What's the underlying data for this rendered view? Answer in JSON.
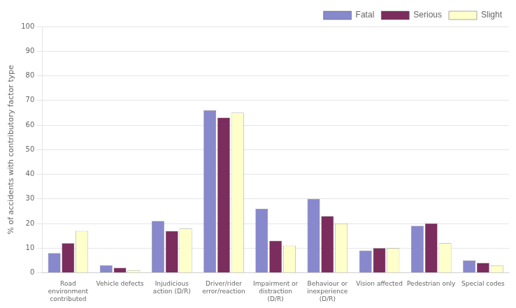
{
  "chart_data": {
    "type": "bar",
    "categories": [
      "Road\nenvironment\ncontributed",
      "Vehicle defects",
      "Injudicious\naction (D/R)",
      "Driver/rider\nerror/reaction",
      "Impairment or\ndistraction\n(D/R)",
      "Behaviour or\ninexperience\n(D/R)",
      "Vision affected",
      "Pedestrian only",
      "Special codes"
    ],
    "series": [
      {
        "name": "Fatal",
        "color": "#8888cc",
        "values": [
          8,
          3,
          21,
          66,
          26,
          30,
          9,
          19,
          5
        ]
      },
      {
        "name": "Serious",
        "color": "#7b2d5e",
        "values": [
          12,
          2,
          17,
          63,
          13,
          23,
          10,
          20,
          4
        ]
      },
      {
        "name": "Slight",
        "color": "#ffffcc",
        "values": [
          17,
          1,
          18,
          65,
          11,
          20,
          10,
          12,
          3
        ]
      }
    ],
    "ylabel": "% of accidents with contributory factor type",
    "ylim": [
      0,
      100
    ],
    "yticks": [
      0,
      10,
      20,
      30,
      40,
      50,
      60,
      70,
      80,
      90,
      100
    ],
    "grid": true,
    "legend": "upper right"
  }
}
